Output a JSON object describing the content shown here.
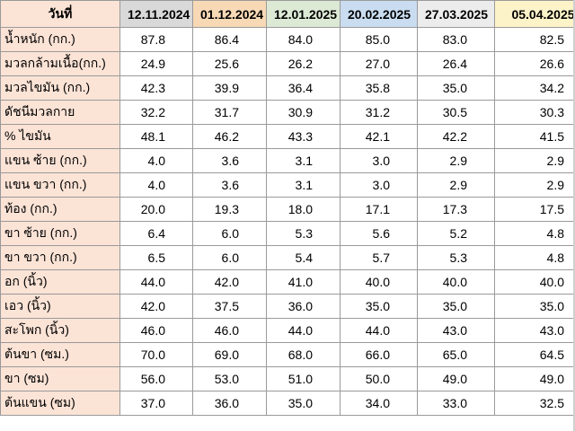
{
  "table": {
    "header_label": "วันที่",
    "columns": [
      {
        "date": "12.11.2024",
        "color": "#d9d9d9"
      },
      {
        "date": "01.12.2024",
        "color": "#f8d9b6"
      },
      {
        "date": "12.01.2025",
        "color": "#dce9d5"
      },
      {
        "date": "20.02.2025",
        "color": "#c9dcf0"
      },
      {
        "date": "27.03.2025",
        "color": "#ececec"
      },
      {
        "date": "05.04.2025",
        "color": "#fdf3c9"
      }
    ],
    "label_color": "#fbe3d6",
    "rows": [
      {
        "label": "น้ำหนัก (กก.)",
        "values": [
          "87.8",
          "86.4",
          "84.0",
          "85.0",
          "83.0",
          "82.5"
        ]
      },
      {
        "label": "มวลกล้ามเนื้อ(กก.)",
        "values": [
          "24.9",
          "25.6",
          "26.2",
          "27.0",
          "26.4",
          "26.6"
        ]
      },
      {
        "label": "มวลไขมัน (กก.)",
        "values": [
          "42.3",
          "39.9",
          "36.4",
          "35.8",
          "35.0",
          "34.2"
        ]
      },
      {
        "label": "ดัชนีมวลกาย",
        "values": [
          "32.2",
          "31.7",
          "30.9",
          "31.2",
          "30.5",
          "30.3"
        ]
      },
      {
        "label": "% ไขมัน",
        "values": [
          "48.1",
          "46.2",
          "43.3",
          "42.1",
          "42.2",
          "41.5"
        ]
      },
      {
        "label": "แขน ซ้าย (กก.)",
        "values": [
          "4.0",
          "3.6",
          "3.1",
          "3.0",
          "2.9",
          "2.9"
        ]
      },
      {
        "label": "แขน ขวา (กก.)",
        "values": [
          "4.0",
          "3.6",
          "3.1",
          "3.0",
          "2.9",
          "2.9"
        ]
      },
      {
        "label": "ท้อง (กก.)",
        "values": [
          "20.0",
          "19.3",
          "18.0",
          "17.1",
          "17.3",
          "17.5"
        ]
      },
      {
        "label": "ขา ซ้าย (กก.)",
        "values": [
          "6.4",
          "6.0",
          "5.3",
          "5.6",
          "5.2",
          "4.8"
        ]
      },
      {
        "label": "ขา ขวา (กก.)",
        "values": [
          "6.5",
          "6.0",
          "5.4",
          "5.7",
          "5.3",
          "4.8"
        ]
      },
      {
        "label": "อก (นิ้ว)",
        "values": [
          "44.0",
          "42.0",
          "41.0",
          "40.0",
          "40.0",
          "40.0"
        ]
      },
      {
        "label": "เอว (นิ้ว)",
        "values": [
          "42.0",
          "37.5",
          "36.0",
          "35.0",
          "35.0",
          "35.0"
        ]
      },
      {
        "label": "สะโพก (นิ้ว)",
        "values": [
          "46.0",
          "46.0",
          "44.0",
          "44.0",
          "43.0",
          "43.0"
        ]
      },
      {
        "label": "ต้นขา (ซม.)",
        "values": [
          "70.0",
          "69.0",
          "68.0",
          "66.0",
          "65.0",
          "64.5"
        ]
      },
      {
        "label": "ขา (ซม)",
        "values": [
          "56.0",
          "53.0",
          "51.0",
          "50.0",
          "49.0",
          "49.0"
        ]
      },
      {
        "label": "ต้นแขน (ซม)",
        "values": [
          "37.0",
          "36.0",
          "35.0",
          "34.0",
          "33.0",
          "32.5"
        ]
      }
    ]
  }
}
